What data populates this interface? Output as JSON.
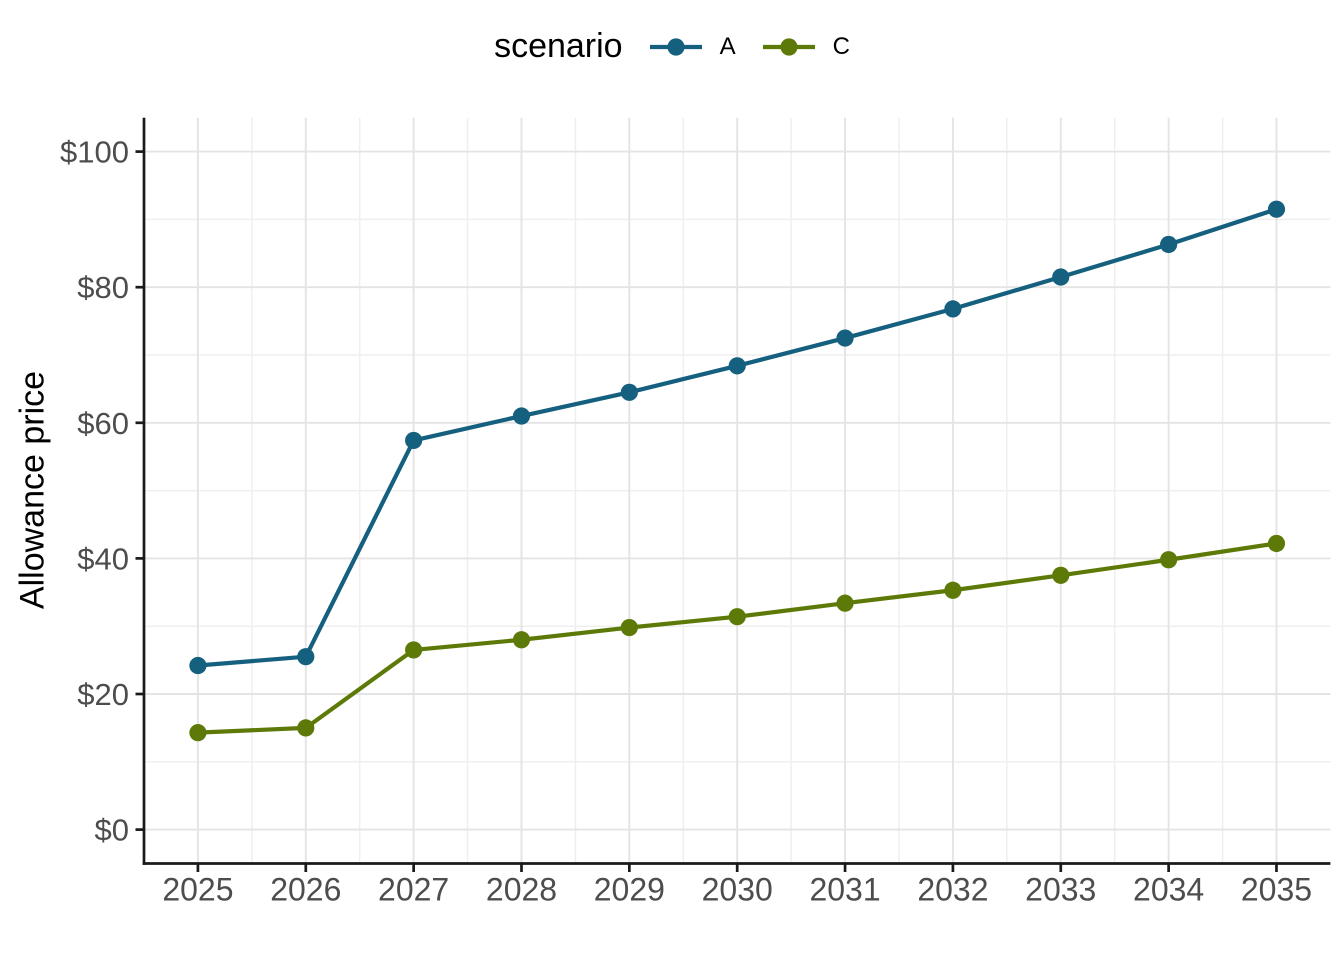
{
  "legend": {
    "title": "scenario",
    "items": [
      {
        "label": "A",
        "color": "#15607f"
      },
      {
        "label": "C",
        "color": "#5d7a08"
      }
    ]
  },
  "chart_data": {
    "type": "line",
    "title": "",
    "xlabel": "",
    "ylabel": "Allowance price",
    "x": [
      2025,
      2026,
      2027,
      2028,
      2029,
      2030,
      2031,
      2032,
      2033,
      2034,
      2035
    ],
    "xtick_labels": [
      "2025",
      "2026",
      "2027",
      "2028",
      "2029",
      "2030",
      "2031",
      "2032",
      "2033",
      "2034",
      "2035"
    ],
    "series": [
      {
        "name": "A",
        "color": "#15607f",
        "values": [
          24.2,
          25.5,
          57.4,
          61.0,
          64.5,
          68.4,
          72.5,
          76.8,
          81.5,
          86.3,
          91.5
        ]
      },
      {
        "name": "C",
        "color": "#5d7a08",
        "values": [
          14.3,
          15.0,
          26.5,
          28.0,
          29.8,
          31.4,
          33.4,
          35.3,
          37.5,
          39.8,
          42.2
        ]
      }
    ],
    "ylim": [
      0,
      100
    ],
    "yticks": [
      0,
      20,
      40,
      60,
      80,
      100
    ],
    "ytick_labels": [
      "$0",
      "$20",
      "$40",
      "$60",
      "$80",
      "$100"
    ],
    "grid": "major+minor",
    "legend_position": "top-center",
    "marker": "circle"
  },
  "style": {
    "background": "#ffffff",
    "axis_color": "#1a1a1a",
    "tick_label_color": "#4d4d4d",
    "grid_major_color": "#e4e4e4",
    "grid_minor_color": "#efefef"
  }
}
